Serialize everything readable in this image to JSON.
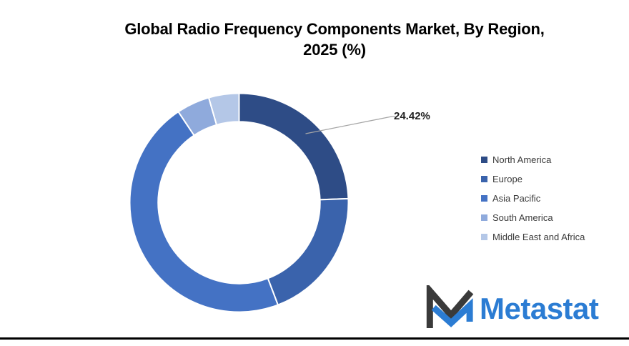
{
  "title": {
    "line1": "Global Radio Frequency Components Market, By Region,",
    "line2": "2025 (%)"
  },
  "chart_data": {
    "type": "pie",
    "subtype": "donut",
    "hole_ratio": 0.74,
    "start_angle_deg": 0,
    "direction": "clockwise",
    "legend_position": "right",
    "categories": [
      "North America",
      "Europe",
      "Asia Pacific",
      "South America",
      "Middle East and Africa"
    ],
    "values": [
      24.42,
      19.8,
      46.4,
      4.9,
      4.48
    ],
    "colors": [
      "#2E4C86",
      "#3A63AC",
      "#4472C4",
      "#8FAADC",
      "#B4C7E7"
    ],
    "data_label": {
      "slice": "North America",
      "text": "24.42%"
    },
    "leader_line_color": "#A6A6A6",
    "slice_gap_color": "#FFFFFF"
  },
  "legend": {
    "items": [
      "North America",
      "Europe",
      "Asia Pacific",
      "South America",
      "Middle East and Africa"
    ]
  },
  "logo": {
    "text": "Metastat",
    "text_color": "#2B7CD3",
    "mark_dark_color": "#3A3A3A",
    "mark_blue_color": "#2B7CD3"
  },
  "styles": {
    "background": "#FFFFFF",
    "title_color": "#000000",
    "data_label_color": "#222222",
    "legend_text_color": "#3A3A3A",
    "bottom_rule_color": "#000000"
  }
}
